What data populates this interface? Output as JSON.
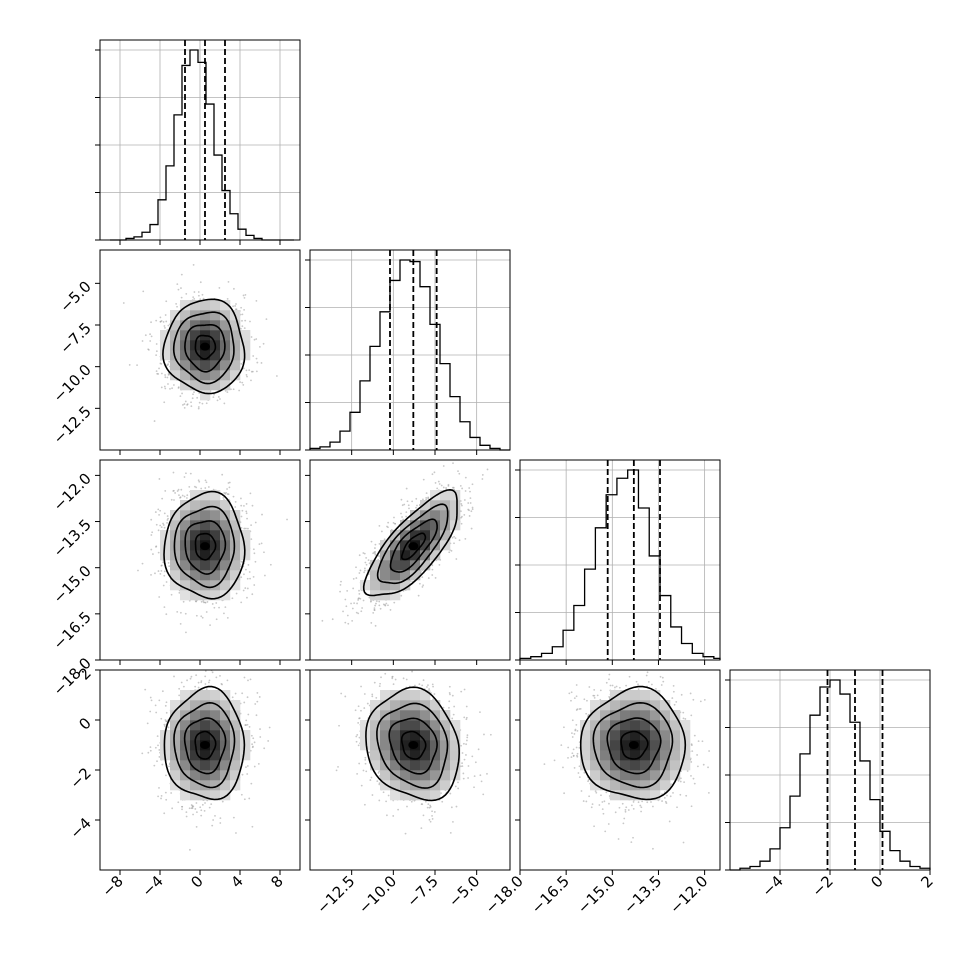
{
  "chart_data": {
    "type": "corner",
    "title": "",
    "colors": {
      "hist_line": "#000000",
      "contour": "#000000",
      "quantile_line": "#000000",
      "grid": "#b0b0b0",
      "density_max": "#000000",
      "scatter_points": "#9a9a9a"
    },
    "grid": true,
    "parameters": [
      {
        "label": "",
        "range": [
          -10,
          10
        ],
        "ticks": [
          -8,
          -4,
          0,
          4,
          8
        ],
        "tick_labels": [
          "−8",
          "−4",
          "0",
          "4",
          "8"
        ],
        "mean": 0.5,
        "sigma": 2.0,
        "quantiles": [
          -1.5,
          0.5,
          2.5
        ],
        "hist": {
          "bin_edges": [
            -9.0,
            -8.2,
            -7.4,
            -6.6,
            -5.8,
            -5.0,
            -4.2,
            -3.4,
            -2.6,
            -1.8,
            -1.0,
            -0.2,
            0.6,
            1.4,
            2.2,
            3.0,
            3.8,
            4.6,
            5.4,
            6.2,
            7.0,
            7.8,
            8.6,
            9.4
          ],
          "counts": [
            0,
            0,
            1,
            2,
            5,
            10,
            26,
            48,
            81,
            113,
            123,
            115,
            88,
            55,
            32,
            17,
            7,
            3,
            1,
            0,
            0,
            0,
            0
          ]
        }
      },
      {
        "label": "",
        "range": [
          -15,
          -3
        ],
        "ticks": [
          -12.5,
          -10.0,
          -7.5,
          -5.0
        ],
        "tick_labels": [
          "−12.5",
          "−10.0",
          "−7.5",
          "−5.0"
        ],
        "mean": -8.8,
        "sigma": 1.4,
        "quantiles": [
          -10.2,
          -8.8,
          -7.4
        ],
        "hist": {
          "bin_edges": [
            -15.0,
            -14.4,
            -13.8,
            -13.2,
            -12.6,
            -12.0,
            -11.4,
            -10.8,
            -10.2,
            -9.6,
            -9.0,
            -8.4,
            -7.8,
            -7.2,
            -6.6,
            -6.0,
            -5.4,
            -4.8,
            -4.2,
            -3.6,
            -3.0
          ],
          "counts": [
            1,
            2,
            5,
            12,
            24,
            44,
            66,
            88,
            108,
            121,
            120,
            104,
            80,
            55,
            34,
            18,
            8,
            3,
            1,
            0
          ]
        }
      },
      {
        "label": "",
        "range": [
          -18,
          -11.5
        ],
        "ticks": [
          -18.0,
          -16.5,
          -15.0,
          -13.5,
          -12.0
        ],
        "tick_labels": [
          "−18.0",
          "−16.5",
          "−15.0",
          "−13.5",
          "−12.0"
        ],
        "mean": -14.3,
        "sigma": 0.85,
        "quantiles": [
          -15.15,
          -14.3,
          -13.45
        ],
        "hist": {
          "bin_edges": [
            -18.0,
            -17.65,
            -17.3,
            -16.95,
            -16.6,
            -16.25,
            -15.9,
            -15.55,
            -15.2,
            -14.85,
            -14.5,
            -14.15,
            -13.8,
            -13.45,
            -13.1,
            -12.75,
            -12.4,
            -12.05,
            -11.7,
            -11.5
          ],
          "counts": [
            1,
            2,
            4,
            8,
            18,
            33,
            55,
            80,
            100,
            110,
            115,
            92,
            63,
            39,
            20,
            10,
            4,
            2,
            1
          ]
        }
      },
      {
        "label": "",
        "range": [
          -6,
          2
        ],
        "ticks": [
          -4,
          -2,
          0,
          2
        ],
        "tick_labels": [
          "−4",
          "−2",
          "0",
          "2"
        ],
        "y_ticks": [
          -4,
          -2,
          0,
          2
        ],
        "y_tick_labels": [
          "−4",
          "−2",
          "0",
          "2"
        ],
        "mean": -1.0,
        "sigma": 1.1,
        "quantiles": [
          -2.1,
          -1.0,
          0.1
        ],
        "hist": {
          "bin_edges": [
            -6.0,
            -5.6,
            -5.2,
            -4.8,
            -4.4,
            -4.0,
            -3.6,
            -3.2,
            -2.8,
            -2.4,
            -2.0,
            -1.6,
            -1.2,
            -0.8,
            -0.4,
            0.0,
            0.4,
            0.8,
            1.2,
            1.6,
            2.0
          ],
          "counts": [
            0,
            1,
            2,
            5,
            12,
            24,
            42,
            66,
            88,
            104,
            108,
            100,
            84,
            62,
            40,
            22,
            11,
            5,
            2,
            1
          ]
        }
      }
    ],
    "pairs": [
      {
        "x": 0,
        "y": 1,
        "rho": 0.0
      },
      {
        "x": 0,
        "y": 2,
        "rho": 0.0
      },
      {
        "x": 1,
        "y": 2,
        "rho": 0.75
      },
      {
        "x": 0,
        "y": 3,
        "rho": 0.0
      },
      {
        "x": 1,
        "y": 3,
        "rho": -0.15
      },
      {
        "x": 2,
        "y": 3,
        "rho": 0.0
      }
    ],
    "contour_levels_sigma": [
      0.5,
      1.0,
      1.5,
      2.0
    ]
  }
}
